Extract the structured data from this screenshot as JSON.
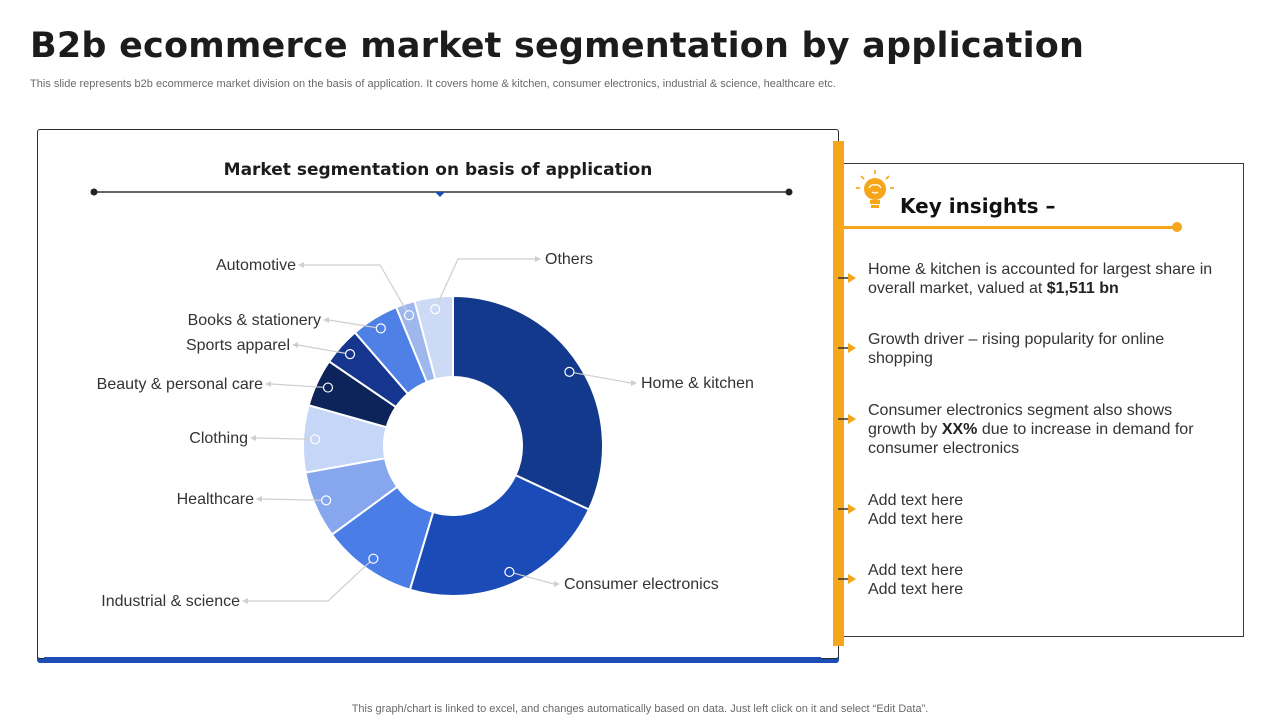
{
  "slide": {
    "title": "B2b ecommerce market segmentation by application",
    "subtitle": "This slide represents b2b ecommerce market division on the basis of application. It covers home & kitchen, consumer electronics, industrial & science, healthcare etc.",
    "footer": "This graph/chart is linked to excel,  and changes automatically based on data. Just left click on it and select “Edit Data”."
  },
  "chart_data": {
    "type": "pie",
    "title": "Market segmentation on basis of application",
    "donut": true,
    "slices": [
      {
        "label": "Home & kitchen",
        "value": 31,
        "color": "#13398c"
      },
      {
        "label": "Consumer electronics",
        "value": 22,
        "color": "#1a4bb6"
      },
      {
        "label": "Industrial  & science",
        "value": 10,
        "color": "#4a7ee6"
      },
      {
        "label": "Healthcare",
        "value": 7,
        "color": "#86a7ee"
      },
      {
        "label": "Clothing",
        "value": 7,
        "color": "#c6d6f6"
      },
      {
        "label": "Beauty & personal care",
        "value": 5,
        "color": "#0c2459"
      },
      {
        "label": "Sports apparel",
        "value": 4,
        "color": "#15358e"
      },
      {
        "label": "Books & stationery",
        "value": 5,
        "color": "#4e80e6"
      },
      {
        "label": "Automotive",
        "value": 2,
        "color": "#9eb8ee"
      },
      {
        "label": "Others",
        "value": 4,
        "color": "#cddaf5"
      }
    ]
  },
  "insights": {
    "heading": "Key insights –",
    "items": [
      {
        "pre": "Home & kitchen is accounted for largest share in overall market, valued at ",
        "bold": "$1,511 bn",
        "post": ""
      },
      {
        "pre": "Growth driver – rising popularity for online shopping",
        "bold": "",
        "post": ""
      },
      {
        "pre": "Consumer electronics segment also shows growth by ",
        "bold": "XX%",
        "post": " due to increase in demand for consumer electronics"
      },
      {
        "pre": "Add text here\nAdd text here",
        "bold": "",
        "post": ""
      },
      {
        "pre": "Add text here\nAdd text here",
        "bold": "",
        "post": ""
      }
    ]
  },
  "colors": {
    "accent": "#f5a61a",
    "primary": "#1a4bb6"
  }
}
